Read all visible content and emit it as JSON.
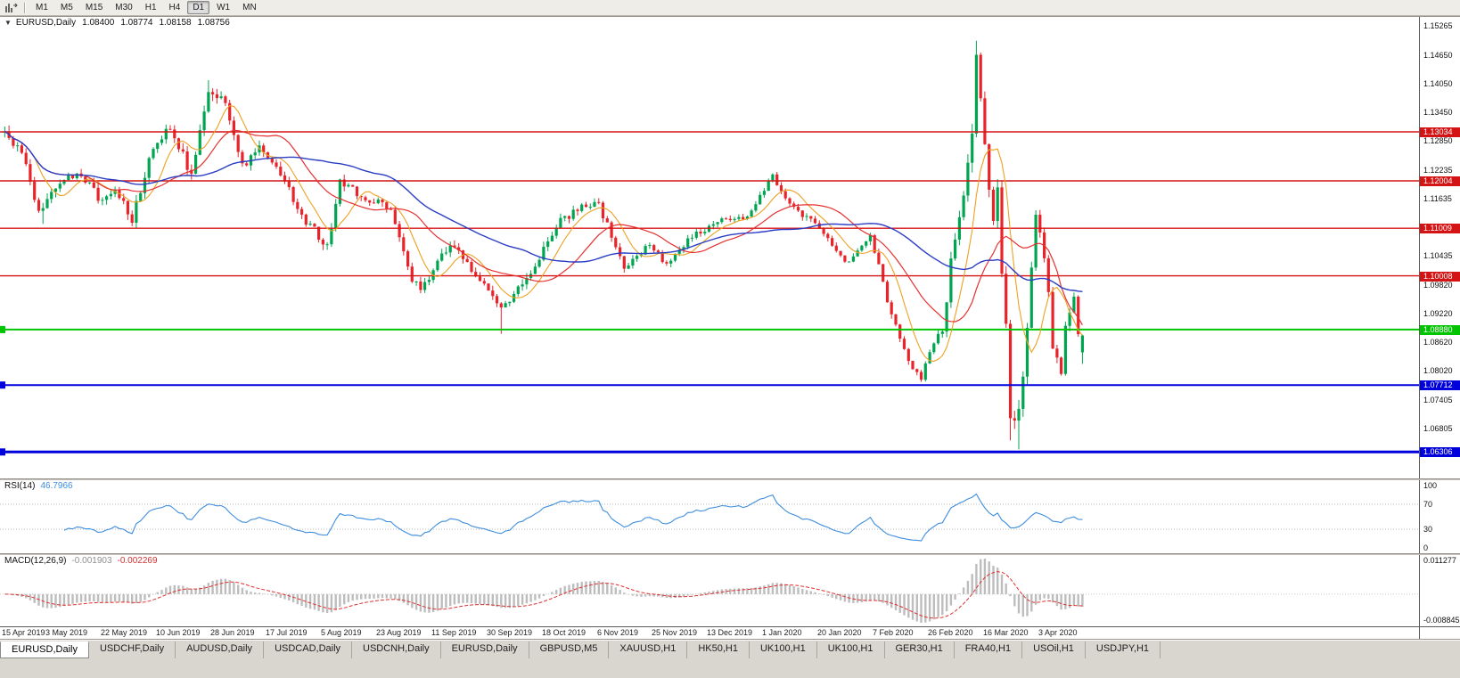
{
  "toolbar": {
    "timeframes": [
      "M1",
      "M5",
      "M15",
      "M30",
      "H1",
      "H4",
      "D1",
      "W1",
      "MN"
    ],
    "active_timeframe": "D1"
  },
  "chart_header": {
    "symbol": "EURUSD,Daily",
    "open": "1.08400",
    "high": "1.08774",
    "low": "1.08158",
    "close": "1.08756"
  },
  "chart_data": {
    "type": "candlestick",
    "symbol": "EURUSD",
    "timeframe": "Daily",
    "candle_count": 255,
    "x_axis_labels": [
      "15 Apr 2019",
      "3 May 2019",
      "22 May 2019",
      "10 Jun 2019",
      "28 Jun 2019",
      "17 Jul 2019",
      "5 Aug 2019",
      "23 Aug 2019",
      "11 Sep 2019",
      "30 Sep 2019",
      "18 Oct 2019",
      "6 Nov 2019",
      "25 Nov 2019",
      "13 Dec 2019",
      "1 Jan 2020",
      "20 Jan 2020",
      "7 Feb 2020",
      "26 Feb 2020",
      "16 Mar 2020",
      "3 Apr 2020"
    ],
    "first_label_index": 2,
    "candles_per_label": 13,
    "price_axis_ticks": [
      "1.15265",
      "1.14650",
      "1.14050",
      "1.13450",
      "1.12850",
      "1.12235",
      "1.11635",
      "1.10435",
      "1.09820",
      "1.09220",
      "1.08620",
      "1.08020",
      "1.07405",
      "1.06805"
    ],
    "price_range": {
      "top": 1.1545,
      "bottom": 1.0575
    },
    "horizontal_lines": [
      {
        "price": 1.13034,
        "label": "1.13034",
        "color": "#d41414",
        "width": 1.4,
        "left_tag": false
      },
      {
        "price": 1.12004,
        "label": "1.12004",
        "color": "#d41414",
        "width": 1.4,
        "left_tag": false
      },
      {
        "price": 1.11009,
        "label": "1.11009",
        "color": "#d41414",
        "width": 1.4,
        "left_tag": false
      },
      {
        "price": 1.10008,
        "label": "1.10008",
        "color": "#d41414",
        "width": 1.4,
        "left_tag": false
      },
      {
        "price": 1.0888,
        "label": "1.08880",
        "color": "#00c400",
        "width": 2,
        "left_tag": true
      },
      {
        "price": 1.07712,
        "label": "1.07712",
        "color": "#0000dd",
        "width": 2,
        "left_tag": true
      },
      {
        "price": 1.06306,
        "label": "1.06306",
        "color": "#0000dd",
        "width": 3,
        "left_tag": true
      }
    ],
    "moving_averages": [
      {
        "period": 8,
        "color": "#eda122",
        "width": 1.1
      },
      {
        "period": 20,
        "color": "#e63030",
        "width": 1.2
      },
      {
        "period": 45,
        "color": "#2a3dc4",
        "width": 1.4
      }
    ],
    "candle_colors": {
      "bull": "#00a550",
      "bear": "#e8232a"
    },
    "last_candle": {
      "open": 1.084,
      "high": 1.08774,
      "low": 1.08158,
      "close": 1.08756
    },
    "price_path_anchors": [
      [
        0,
        1.1302,
        0.0026
      ],
      [
        4,
        1.126,
        0.0024
      ],
      [
        8,
        1.114,
        0.0026
      ],
      [
        13,
        1.1199,
        0.0024
      ],
      [
        18,
        1.1218,
        0.0022
      ],
      [
        23,
        1.1155,
        0.0024
      ],
      [
        26,
        1.118,
        0.0024
      ],
      [
        30,
        1.1118,
        0.0026
      ],
      [
        34,
        1.1248,
        0.0026
      ],
      [
        39,
        1.1318,
        0.0026
      ],
      [
        44,
        1.1212,
        0.0028
      ],
      [
        48,
        1.1392,
        0.003
      ],
      [
        52,
        1.137,
        0.0026
      ],
      [
        56,
        1.1228,
        0.0024
      ],
      [
        60,
        1.1268,
        0.0022
      ],
      [
        65,
        1.1215,
        0.0022
      ],
      [
        70,
        1.1128,
        0.0022
      ],
      [
        76,
        1.1062,
        0.0026
      ],
      [
        79,
        1.1198,
        0.0024
      ],
      [
        84,
        1.1168,
        0.0022
      ],
      [
        91,
        1.1143,
        0.002
      ],
      [
        96,
        1.0992,
        0.0022
      ],
      [
        98,
        1.097,
        0.0022
      ],
      [
        105,
        1.1068,
        0.0024
      ],
      [
        110,
        1.1015,
        0.002
      ],
      [
        117,
        1.093,
        0.0022
      ],
      [
        124,
        1.1,
        0.0022
      ],
      [
        130,
        1.1108,
        0.0022
      ],
      [
        136,
        1.1148,
        0.0018
      ],
      [
        140,
        1.115,
        0.0018
      ],
      [
        146,
        1.102,
        0.0018
      ],
      [
        152,
        1.1068,
        0.0016
      ],
      [
        156,
        1.1022,
        0.0016
      ],
      [
        161,
        1.1078,
        0.0016
      ],
      [
        169,
        1.112,
        0.0016
      ],
      [
        175,
        1.1122,
        0.0014
      ],
      [
        181,
        1.121,
        0.0016
      ],
      [
        186,
        1.114,
        0.0016
      ],
      [
        190,
        1.1118,
        0.0016
      ],
      [
        199,
        1.1025,
        0.0016
      ],
      [
        204,
        1.109,
        0.0018
      ],
      [
        208,
        1.0946,
        0.002
      ],
      [
        213,
        1.0815,
        0.002
      ],
      [
        216,
        1.0786,
        0.002
      ],
      [
        219,
        1.0865,
        0.0022
      ],
      [
        221,
        1.088,
        0.0024
      ],
      [
        223,
        1.103,
        0.0032
      ],
      [
        226,
        1.117,
        0.0038
      ],
      [
        228,
        1.1284,
        0.0042
      ],
      [
        229,
        1.145,
        0.0048
      ],
      [
        231,
        1.1272,
        0.0044
      ],
      [
        233,
        1.1105,
        0.0042
      ],
      [
        234,
        1.118,
        0.004
      ],
      [
        235,
        1.0995,
        0.0042
      ],
      [
        236,
        1.0915,
        0.004
      ],
      [
        237,
        1.0692,
        0.0042
      ],
      [
        239,
        1.0726,
        0.0038
      ],
      [
        241,
        1.088,
        0.0036
      ],
      [
        243,
        1.1141,
        0.0034
      ],
      [
        245,
        1.1031,
        0.003
      ],
      [
        246,
        1.0962,
        0.0028
      ],
      [
        247,
        1.0858,
        0.0026
      ],
      [
        249,
        1.0791,
        0.0026
      ],
      [
        250,
        1.09,
        0.0024
      ],
      [
        252,
        1.0965,
        0.0022
      ],
      [
        253,
        1.0885,
        0.002
      ],
      [
        254,
        1.0876,
        0.0018
      ]
    ],
    "forced_extremes": [
      {
        "index": 9,
        "low": 1.111
      },
      {
        "index": 48,
        "high": 1.1412
      },
      {
        "index": 117,
        "low": 1.0879
      },
      {
        "index": 216,
        "low": 1.0778
      },
      {
        "index": 229,
        "high": 1.1495
      },
      {
        "index": 237,
        "low": 1.0655
      },
      {
        "index": 239,
        "low": 1.0636
      }
    ]
  },
  "rsi": {
    "label": "RSI(14)",
    "period": 14,
    "value": "46.7966",
    "scale_labels": [
      "100",
      "70",
      "30",
      "0"
    ],
    "level_lines": [
      70,
      30
    ],
    "color": "#3e8ede"
  },
  "macd": {
    "label": "MACD(12,26,9)",
    "fast": 12,
    "slow": 26,
    "signal": 9,
    "main_value": "-0.001903",
    "signal_value": "-0.002269",
    "scale_top": "0.011277",
    "scale_bottom": "-0.008845",
    "histogram_color": "#bdbdbd",
    "signal_color": "#e03030"
  },
  "bottom_tabs": {
    "active_index": 0,
    "tabs": [
      "EURUSD,Daily",
      "USDCHF,Daily",
      "AUDUSD,Daily",
      "USDCAD,Daily",
      "USDCNH,Daily",
      "EURUSD,Daily",
      "GBPUSD,M5",
      "XAUUSD,H1",
      "HK50,H1",
      "UK100,H1",
      "UK100,H1",
      "GER30,H1",
      "FRA40,H1",
      "USOil,H1",
      "USDJPY,H1"
    ]
  }
}
